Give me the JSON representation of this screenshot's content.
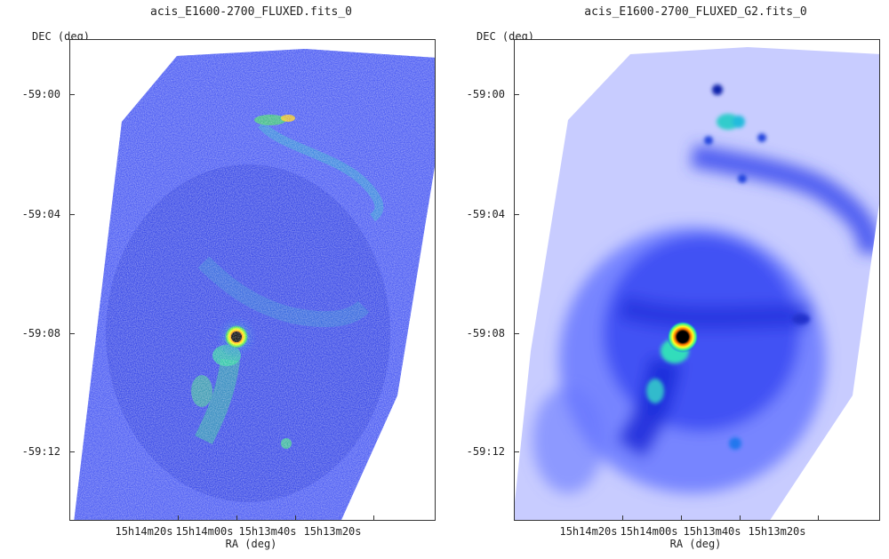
{
  "panels": [
    {
      "title": "acis_E1600-2700_FLUXED.fits_0",
      "ylabel": "DEC (deg)",
      "xlabel": "RA (deg)",
      "yticks": [
        "-59:00",
        "-59:04",
        "-59:08",
        "-59:12"
      ],
      "xticks": [
        "15h14m20s",
        "15h14m00s",
        "15h13m40s",
        "15h13m20s"
      ]
    },
    {
      "title": "acis_E1600-2700_FLUXED_G2.fits_0",
      "ylabel": "DEC (deg)",
      "xlabel": "RA (deg)",
      "yticks": [
        "-59:00",
        "-59:04",
        "-59:08",
        "-59:12"
      ],
      "xticks": [
        "15h14m20s",
        "15h14m00s",
        "15h13m40s",
        "15h13m20s"
      ]
    }
  ],
  "colors": {
    "background": "#ffffff",
    "low": "#d8dcff",
    "mid": "#2233ee",
    "high": "#00ccaa",
    "core": "#000000",
    "ring": "#ff9900"
  }
}
